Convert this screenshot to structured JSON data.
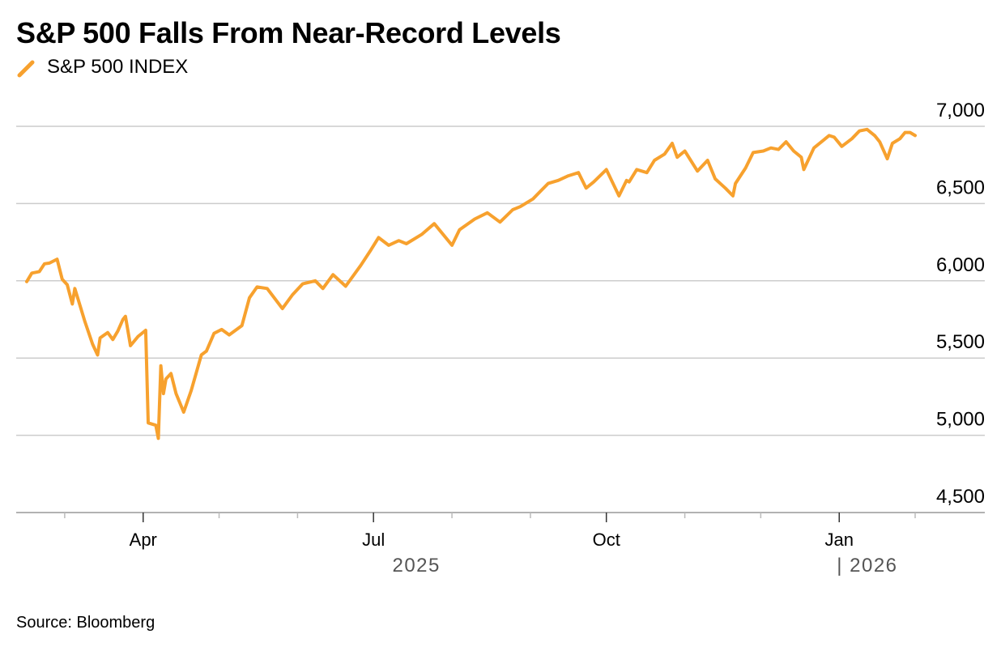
{
  "chart_data": {
    "type": "line",
    "title": "S&P 500 Falls From Near-Record Levels",
    "legend": [
      {
        "name": "S&P 500 INDEX",
        "color": "#F7A12E"
      }
    ],
    "ylabel": "",
    "xlabel": "",
    "ylim": [
      4500,
      7000
    ],
    "yticks": [
      4500,
      5000,
      5500,
      6000,
      6500,
      7000
    ],
    "ytick_labels": [
      "4,500",
      "5,000",
      "5,500",
      "6,000",
      "6,500",
      "7,000"
    ],
    "x_domain": [
      "2025-02-14",
      "2026-01-31"
    ],
    "xtick_labels": [
      {
        "label": "Apr",
        "date": "2025-04-01"
      },
      {
        "label": "Jul",
        "date": "2025-07-01"
      },
      {
        "label": "Oct",
        "date": "2025-10-01"
      },
      {
        "label": "Jan",
        "date": "2026-01-01"
      }
    ],
    "minor_ticks": [
      "2025-03-01",
      "2025-05-01",
      "2025-06-01",
      "2025-08-01",
      "2025-09-01",
      "2025-11-01",
      "2025-12-01",
      "2026-01-31"
    ],
    "year_labels": [
      {
        "label": "2025",
        "date": "2025-07-01"
      },
      {
        "label": "| 2026",
        "date": "2026-01-01"
      }
    ],
    "grid": true,
    "series": [
      {
        "name": "S&P 500 INDEX",
        "color": "#F7A12E",
        "x": [
          "2025-02-14",
          "2025-02-16",
          "2025-02-19",
          "2025-02-21",
          "2025-02-23",
          "2025-02-26",
          "2025-02-28",
          "2025-03-02",
          "2025-03-04",
          "2025-03-05",
          "2025-03-09",
          "2025-03-12",
          "2025-03-14",
          "2025-03-15",
          "2025-03-18",
          "2025-03-20",
          "2025-03-22",
          "2025-03-24",
          "2025-03-25",
          "2025-03-27",
          "2025-03-30",
          "2025-04-02",
          "2025-04-03",
          "2025-04-06",
          "2025-04-07",
          "2025-04-08",
          "2025-04-09",
          "2025-04-10",
          "2025-04-12",
          "2025-04-14",
          "2025-04-17",
          "2025-04-20",
          "2025-04-24",
          "2025-04-26",
          "2025-04-29",
          "2025-05-02",
          "2025-05-05",
          "2025-05-10",
          "2025-05-13",
          "2025-05-16",
          "2025-05-20",
          "2025-05-26",
          "2025-05-30",
          "2025-06-03",
          "2025-06-08",
          "2025-06-11",
          "2025-06-15",
          "2025-06-20",
          "2025-06-26",
          "2025-06-30",
          "2025-07-03",
          "2025-07-07",
          "2025-07-11",
          "2025-07-14",
          "2025-07-20",
          "2025-07-25",
          "2025-08-01",
          "2025-08-04",
          "2025-08-10",
          "2025-08-15",
          "2025-08-20",
          "2025-08-25",
          "2025-08-28",
          "2025-09-02",
          "2025-09-05",
          "2025-09-08",
          "2025-09-12",
          "2025-09-16",
          "2025-09-20",
          "2025-09-23",
          "2025-09-26",
          "2025-10-01",
          "2025-10-06",
          "2025-10-09",
          "2025-10-10",
          "2025-10-13",
          "2025-10-17",
          "2025-10-20",
          "2025-10-24",
          "2025-10-27",
          "2025-10-29",
          "2025-11-01",
          "2025-11-06",
          "2025-11-10",
          "2025-11-13",
          "2025-11-17",
          "2025-11-20",
          "2025-11-21",
          "2025-11-25",
          "2025-11-28",
          "2025-12-02",
          "2025-12-05",
          "2025-12-08",
          "2025-12-11",
          "2025-12-14",
          "2025-12-17",
          "2025-12-18",
          "2025-12-22",
          "2025-12-25",
          "2025-12-28",
          "2025-12-30",
          "2026-01-02",
          "2026-01-06",
          "2026-01-09",
          "2026-01-12",
          "2026-01-15",
          "2026-01-17",
          "2026-01-20",
          "2026-01-22",
          "2026-01-25",
          "2026-01-27",
          "2026-01-29",
          "2026-01-31"
        ],
        "values": [
          5995,
          6050,
          6060,
          6110,
          6115,
          6140,
          6010,
          5975,
          5850,
          5950,
          5735,
          5590,
          5520,
          5630,
          5665,
          5620,
          5675,
          5750,
          5770,
          5580,
          5640,
          5680,
          5080,
          5065,
          4980,
          5450,
          5270,
          5365,
          5400,
          5270,
          5150,
          5290,
          5520,
          5545,
          5660,
          5685,
          5650,
          5710,
          5890,
          5960,
          5950,
          5820,
          5910,
          5980,
          6000,
          5950,
          6040,
          5965,
          6100,
          6200,
          6280,
          6230,
          6260,
          6240,
          6300,
          6370,
          6230,
          6330,
          6400,
          6440,
          6380,
          6460,
          6480,
          6530,
          6580,
          6630,
          6650,
          6680,
          6700,
          6600,
          6640,
          6720,
          6550,
          6650,
          6640,
          6720,
          6700,
          6780,
          6820,
          6890,
          6800,
          6840,
          6710,
          6780,
          6660,
          6600,
          6550,
          6630,
          6730,
          6830,
          6840,
          6860,
          6850,
          6900,
          6840,
          6800,
          6720,
          6860,
          6900,
          6940,
          6930,
          6870,
          6920,
          6970,
          6980,
          6940,
          6900,
          6790,
          6890,
          6920,
          6960,
          6960,
          6940
        ]
      }
    ],
    "source": "Source: Bloomberg"
  },
  "legend_icon": "line-swatch-icon"
}
